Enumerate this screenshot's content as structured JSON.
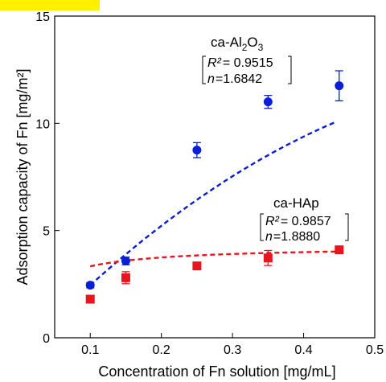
{
  "colors": {
    "highlight": "#fff000",
    "alumina": "#0a1ed8",
    "hap": "#e8141e",
    "axis": "#000000"
  },
  "chart_data": {
    "type": "scatter",
    "xlabel": "Concentration of Fn solution [mg/mL]",
    "ylabel": "Adsorption capacity of Fn [mg/m²]",
    "xlim": [
      0.05,
      0.5
    ],
    "ylim": [
      0,
      15
    ],
    "xticks": [
      "0.1",
      "0.2",
      "0.3",
      "0.4",
      "0.5"
    ],
    "yticks": [
      "0",
      "5",
      "10",
      "15"
    ],
    "grid": false,
    "series": [
      {
        "name": "ca-Al2O3",
        "label_main": "ca-Al",
        "label_sub1": "2",
        "label_mid": "O",
        "label_sub2": "3",
        "r2_label": "R²",
        "r2_value": "= 0.9515",
        "n_label": "n",
        "n_value": "=1.6842",
        "marker": "circle",
        "x": [
          0.1,
          0.15,
          0.25,
          0.35,
          0.45
        ],
        "y": [
          2.45,
          3.58,
          8.75,
          11.0,
          11.75
        ],
        "err": [
          0.12,
          0.18,
          0.35,
          0.3,
          0.7
        ],
        "fit": {
          "k": 3.8,
          "q": 0.555,
          "n": 1.6842
        }
      },
      {
        "name": "ca-HAp",
        "label_main": "ca-HAp",
        "r2_label": "R²",
        "r2_value": "= 0.9857",
        "n_label": "n",
        "n_value": "=1.8880",
        "marker": "square",
        "x": [
          0.1,
          0.15,
          0.25,
          0.35,
          0.45
        ],
        "y": [
          1.8,
          2.8,
          3.35,
          3.72,
          4.1
        ],
        "err": [
          0.1,
          0.28,
          0.1,
          0.35,
          0.12
        ],
        "fit": {
          "qmax": 4.2,
          "b": 0.11,
          "p": 1.888
        }
      }
    ]
  }
}
